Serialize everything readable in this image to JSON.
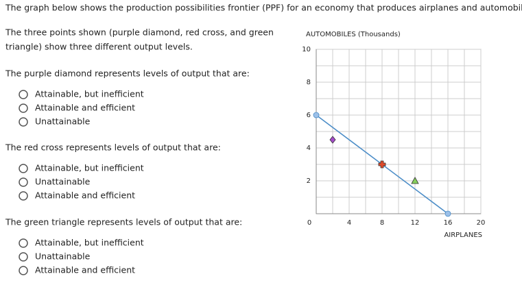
{
  "header": "The graph below shows the production possibilities frontier (PPF) for an economy that produces airplanes and automobiles.",
  "intro": [
    "The three points shown (purple diamond, red cross, and green",
    "triangle) show three different output levels."
  ],
  "questions": [
    {
      "prompt": "The purple diamond represents levels of output that are:",
      "options": [
        "Attainable, but inefficient",
        "Attainable and efficient",
        "Unattainable"
      ]
    },
    {
      "prompt": "The red cross represents levels of output that are:",
      "options": [
        "Attainable, but inefficient",
        "Unattainable",
        "Attainable and efficient"
      ]
    },
    {
      "prompt": "The green triangle represents levels of output that are:",
      "options": [
        "Attainable, but inefficient",
        "Unattainable",
        "Attainable and efficient"
      ]
    }
  ],
  "chart_data": {
    "type": "scatter",
    "y_label": "AUTOMOBILES (Thousands)",
    "x_label": "AIRPLANES",
    "xlim": [
      0,
      20
    ],
    "ylim": [
      0,
      10
    ],
    "xticks": [
      0,
      4,
      8,
      12,
      16,
      20
    ],
    "yticks": [
      2,
      4,
      6,
      8,
      10
    ],
    "grid": {
      "x": [
        2,
        4,
        6,
        8,
        10,
        12,
        14,
        16,
        18,
        20
      ],
      "y": [
        1,
        2,
        3,
        4,
        5,
        6,
        7,
        8,
        9,
        10
      ]
    },
    "series": [
      {
        "x": [
          0,
          16
        ],
        "y": [
          6,
          0
        ],
        "color": "#4a8cc7",
        "marker": "circle",
        "line": true
      },
      {
        "x": [
          2
        ],
        "y": [
          4.5
        ],
        "color": "#a44cc9",
        "marker": "diamond"
      },
      {
        "x": [
          8
        ],
        "y": [
          3
        ],
        "color": "#e04a2a",
        "marker": "cross"
      },
      {
        "x": [
          12
        ],
        "y": [
          2
        ],
        "color": "#86cf5c",
        "marker": "triangle"
      }
    ]
  }
}
